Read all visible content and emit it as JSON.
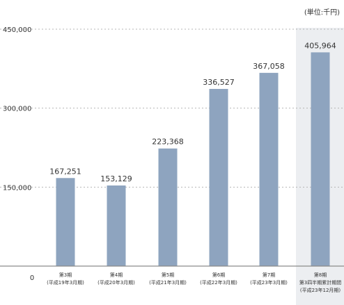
{
  "chart_data": {
    "type": "bar",
    "unit_label": "(単位:千円)",
    "categories": [
      [
        "第3期",
        "(平成19年3月期)"
      ],
      [
        "第4期",
        "(平成20年3月期)"
      ],
      [
        "第5期",
        "(平成21年3月期)"
      ],
      [
        "第6期",
        "(平成22年3月期)"
      ],
      [
        "第7期",
        "(平成23年3月期)"
      ],
      [
        "第8期",
        "第3四半期累計期間",
        "(平成23年12月期)"
      ]
    ],
    "values": [
      167251,
      153129,
      223368,
      336527,
      367058,
      405964
    ],
    "value_labels": [
      "167,251",
      "153,129",
      "223,368",
      "336,527",
      "367,058",
      "405,964"
    ],
    "y_ticks": [
      {
        "value": 0,
        "label": "0"
      },
      {
        "value": 150000,
        "label": "150,000"
      },
      {
        "value": 300000,
        "label": "300,000"
      },
      {
        "value": 450000,
        "label": "450,000"
      }
    ],
    "ylim": [
      0,
      450000
    ],
    "grid": true,
    "highlight_index": 5,
    "bar_color": "#8ea4bf",
    "highlight_bg": "#eceef1",
    "grid_color": "#b5b5b5",
    "axis_color": "#8a8a8a",
    "text_color": "#333333"
  }
}
